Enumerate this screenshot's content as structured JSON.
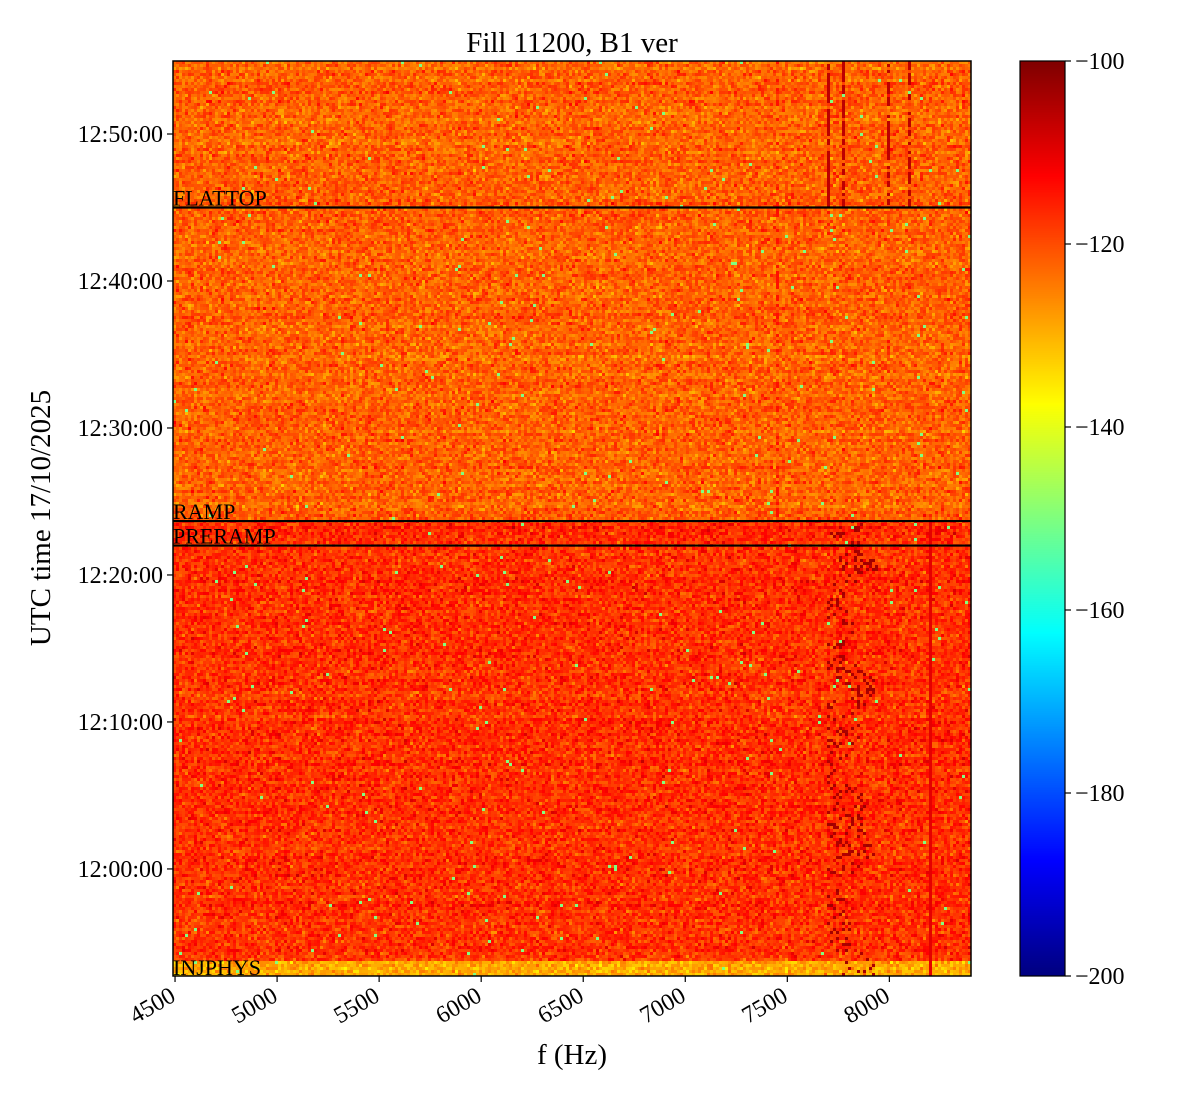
{
  "chart_data": {
    "type": "heatmap",
    "title": "Fill 11200, B1 ver",
    "xlabel": "f (Hz)",
    "ylabel": "UTC time 17/10/2025",
    "xlim": [
      4490,
      8400
    ],
    "xticks": [
      4500,
      5000,
      5500,
      6000,
      6500,
      7000,
      7500,
      8000
    ],
    "xtick_labels": [
      "4500",
      "5000",
      "5500",
      "6000",
      "6500",
      "7000",
      "7500",
      "8000"
    ],
    "ylim_seconds_from_1200": [
      -437,
      3298
    ],
    "yticks_seconds_from_1200": [
      0,
      600,
      1200,
      1800,
      2400,
      3000
    ],
    "ytick_labels": [
      "12:00:00",
      "12:10:00",
      "12:20:00",
      "12:30:00",
      "12:40:00",
      "12:50:00"
    ],
    "colormap": "jet",
    "colorbar": {
      "range": [
        -200,
        -100
      ],
      "ticks": [
        -100,
        -120,
        -140,
        -160,
        -180,
        -200
      ],
      "tick_labels": [
        "−100",
        "−120",
        "−140",
        "−160",
        "−180",
        "−200"
      ]
    },
    "events": [
      {
        "label": "FLATTOP",
        "time_seconds_from_1200": 2700,
        "line": true
      },
      {
        "label": "RAMP",
        "time_seconds_from_1200": 1420,
        "line": true
      },
      {
        "label": "PRERAMP",
        "time_seconds_from_1200": 1320,
        "line": true
      },
      {
        "label": "INJPHYS",
        "time_seconds_from_1200": -420,
        "line": false
      }
    ],
    "regions": [
      {
        "name": "before ramp",
        "mean_level": -117
      },
      {
        "name": "after ramp",
        "mean_level": -122
      }
    ],
    "features": [
      {
        "desc": "dark streaks",
        "freq_range": [
          7700,
          8050
        ],
        "level": -103
      },
      {
        "desc": "vertical lines",
        "freqs": [
          7700,
          7780,
          8000,
          8100,
          8200
        ],
        "level": -106
      }
    ]
  }
}
